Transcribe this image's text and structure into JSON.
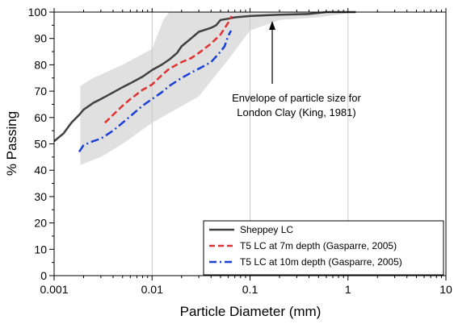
{
  "chart_data": {
    "type": "line",
    "x_scale": "log",
    "xlim": [
      0.001,
      10
    ],
    "ylim": [
      0,
      100
    ],
    "xlabel": "Particle Diameter (mm)",
    "ylabel": "% Passing",
    "x_ticks": [
      0.001,
      0.01,
      0.1,
      1,
      10
    ],
    "x_tick_labels": [
      "0.001",
      "0.01",
      "0.1",
      "1",
      "10"
    ],
    "y_ticks": [
      0,
      10,
      20,
      30,
      40,
      50,
      60,
      70,
      80,
      90,
      100
    ],
    "y_tick_labels": [
      "0",
      "10",
      "20",
      "30",
      "40",
      "50",
      "60",
      "70",
      "80",
      "90",
      "100"
    ],
    "grid": "vertical lines at major x ticks",
    "legend_position": "bottom-right",
    "envelope": {
      "label_lines": [
        "Envelope of particle size for",
        "London Clay (King, 1981)"
      ],
      "fill": "#e0e0e0",
      "upper": [
        {
          "x": 0.00185,
          "y": 72
        },
        {
          "x": 0.0025,
          "y": 75
        },
        {
          "x": 0.005,
          "y": 80
        },
        {
          "x": 0.01,
          "y": 86
        },
        {
          "x": 0.013,
          "y": 97
        },
        {
          "x": 0.015,
          "y": 100
        },
        {
          "x": 1.2,
          "y": 100
        }
      ],
      "lower": [
        {
          "x": 1.2,
          "y": 100
        },
        {
          "x": 0.5,
          "y": 98
        },
        {
          "x": 0.2,
          "y": 97
        },
        {
          "x": 0.1,
          "y": 93
        },
        {
          "x": 0.06,
          "y": 82
        },
        {
          "x": 0.03,
          "y": 68
        },
        {
          "x": 0.01,
          "y": 58
        },
        {
          "x": 0.005,
          "y": 50
        },
        {
          "x": 0.003,
          "y": 45
        },
        {
          "x": 0.00185,
          "y": 42
        }
      ]
    },
    "series": [
      {
        "name": "Sheppey LC",
        "color": "#404040",
        "dash": "solid",
        "points": [
          {
            "x": 0.001,
            "y": 51
          },
          {
            "x": 0.00125,
            "y": 54
          },
          {
            "x": 0.0015,
            "y": 58
          },
          {
            "x": 0.0018,
            "y": 61
          },
          {
            "x": 0.002,
            "y": 63
          },
          {
            "x": 0.0025,
            "y": 65.5
          },
          {
            "x": 0.003,
            "y": 67
          },
          {
            "x": 0.004,
            "y": 69.5
          },
          {
            "x": 0.005,
            "y": 71.5
          },
          {
            "x": 0.006,
            "y": 73
          },
          {
            "x": 0.008,
            "y": 75.5
          },
          {
            "x": 0.01,
            "y": 78
          },
          {
            "x": 0.0125,
            "y": 80
          },
          {
            "x": 0.015,
            "y": 82
          },
          {
            "x": 0.018,
            "y": 84.5
          },
          {
            "x": 0.02,
            "y": 87
          },
          {
            "x": 0.025,
            "y": 90
          },
          {
            "x": 0.03,
            "y": 92.5
          },
          {
            "x": 0.04,
            "y": 94
          },
          {
            "x": 0.045,
            "y": 95
          },
          {
            "x": 0.05,
            "y": 97
          },
          {
            "x": 0.06,
            "y": 97.5
          },
          {
            "x": 0.07,
            "y": 98
          },
          {
            "x": 0.1,
            "y": 98.5
          },
          {
            "x": 0.15,
            "y": 98.8
          },
          {
            "x": 0.2,
            "y": 99
          },
          {
            "x": 0.4,
            "y": 99.3
          },
          {
            "x": 0.6,
            "y": 100
          },
          {
            "x": 1.2,
            "y": 100
          }
        ]
      },
      {
        "name": "T5 LC at 7m depth (Gasparre, 2005)",
        "color": "#e03030",
        "dash": "dash",
        "points": [
          {
            "x": 0.0033,
            "y": 58
          },
          {
            "x": 0.004,
            "y": 61
          },
          {
            "x": 0.005,
            "y": 64.5
          },
          {
            "x": 0.006,
            "y": 67
          },
          {
            "x": 0.008,
            "y": 70.5
          },
          {
            "x": 0.01,
            "y": 72.5
          },
          {
            "x": 0.0125,
            "y": 76
          },
          {
            "x": 0.015,
            "y": 78.5
          },
          {
            "x": 0.02,
            "y": 81
          },
          {
            "x": 0.025,
            "y": 82.5
          },
          {
            "x": 0.03,
            "y": 84.5
          },
          {
            "x": 0.04,
            "y": 88
          },
          {
            "x": 0.05,
            "y": 91.5
          },
          {
            "x": 0.06,
            "y": 96
          },
          {
            "x": 0.065,
            "y": 98.5
          }
        ]
      },
      {
        "name": "T5 LC at 10m depth (Gasparre, 2005)",
        "color": "#1a3fd8",
        "dash": "dashdot",
        "points": [
          {
            "x": 0.0018,
            "y": 47
          },
          {
            "x": 0.002,
            "y": 49.5
          },
          {
            "x": 0.0025,
            "y": 51
          },
          {
            "x": 0.003,
            "y": 52
          },
          {
            "x": 0.004,
            "y": 55
          },
          {
            "x": 0.005,
            "y": 58
          },
          {
            "x": 0.006,
            "y": 60.5
          },
          {
            "x": 0.008,
            "y": 64.5
          },
          {
            "x": 0.01,
            "y": 67
          },
          {
            "x": 0.0125,
            "y": 69.5
          },
          {
            "x": 0.015,
            "y": 72
          },
          {
            "x": 0.02,
            "y": 75
          },
          {
            "x": 0.025,
            "y": 77
          },
          {
            "x": 0.03,
            "y": 78.5
          },
          {
            "x": 0.04,
            "y": 81
          },
          {
            "x": 0.05,
            "y": 85
          },
          {
            "x": 0.055,
            "y": 87
          },
          {
            "x": 0.06,
            "y": 91
          },
          {
            "x": 0.064,
            "y": 93
          }
        ]
      }
    ]
  }
}
